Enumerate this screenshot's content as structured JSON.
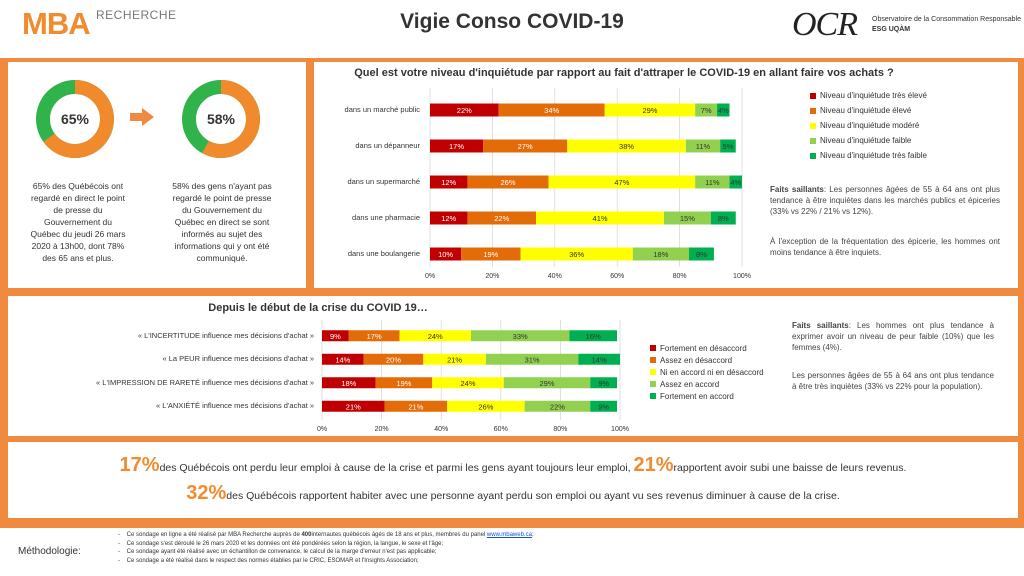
{
  "header": {
    "logo_mba": "MBA",
    "logo_mba_sub": "RECHERCHE",
    "title": "Vigie Conso COVID-19",
    "logo_ocr": "OCR",
    "ocr_sub1": "Observatoire de la Consommation Responsable",
    "ocr_sub2": "ESG UQÀM"
  },
  "donuts": [
    {
      "value": 65,
      "label": "65%",
      "caption": "65% des Québécois ont regardé en direct le point de presse du Gouvernement du Québec du jeudi 26 mars 2020 à 13h00, dont 78% des 65 ans et plus."
    },
    {
      "value": 58,
      "label": "58%",
      "caption": "58% des gens n'ayant pas regardé le point de presse du Gouvernement du Québec en direct se sont informés au sujet des informations qui y ont été communiqué."
    }
  ],
  "colors": {
    "orange": "#ef8a3e",
    "donut_green": "#2fb34a",
    "donut_orange": "#f08a2c"
  },
  "chart_data": [
    {
      "type": "bar",
      "orientation": "horizontal-stacked",
      "title": "Quel est votre niveau d'inquiétude par rapport au fait d'attraper le COVID-19 en allant faire vos achats ?",
      "categories": [
        "dans un marché public",
        "dans un dépanneur",
        "dans un supermarché",
        "dans une pharmacie",
        "dans une boulangerie"
      ],
      "series": [
        {
          "name": "Niveau d'inquiétude très élevé",
          "color": "#c00000",
          "values": [
            22,
            17,
            12,
            12,
            10
          ]
        },
        {
          "name": "Niveau d'inquiétude élevé",
          "color": "#e36c09",
          "values": [
            34,
            27,
            26,
            22,
            19
          ]
        },
        {
          "name": "Niveau d'inquiétude modéré",
          "color": "#ffff00",
          "values": [
            29,
            38,
            47,
            41,
            36
          ]
        },
        {
          "name": "Niveau d'inquiétude faible",
          "color": "#92d050",
          "values": [
            7,
            11,
            11,
            15,
            18
          ]
        },
        {
          "name": "Niveau d'inquiétude très faible",
          "color": "#00b050",
          "values": [
            4,
            5,
            4,
            8,
            8
          ]
        }
      ],
      "xlim": [
        0,
        100
      ],
      "xticks": [
        "0%",
        "20%",
        "40%",
        "60%",
        "80%",
        "100%"
      ],
      "legend": "right"
    },
    {
      "type": "bar",
      "orientation": "horizontal-stacked",
      "title": "Depuis le début de la crise du COVID 19…",
      "categories": [
        "« L'INCERTITUDE influence mes décisions d'achat »",
        "« La PEUR influence mes décisions d'achat »",
        "« L'IMPRESSION DE RARETÉ influence mes décisions d'achat »",
        "« L'ANXIÉTÉ influence mes décisions d'achat »"
      ],
      "series": [
        {
          "name": "Fortement en désaccord",
          "color": "#c00000",
          "values": [
            9,
            14,
            18,
            21
          ]
        },
        {
          "name": "Assez en désaccord",
          "color": "#e36c09",
          "values": [
            17,
            20,
            19,
            21
          ]
        },
        {
          "name": "Ni en accord ni en désaccord",
          "color": "#ffff00",
          "values": [
            24,
            21,
            24,
            26
          ]
        },
        {
          "name": "Assez en accord",
          "color": "#92d050",
          "values": [
            33,
            31,
            29,
            22
          ]
        },
        {
          "name": "Fortement en accord",
          "color": "#00b050",
          "values": [
            16,
            14,
            9,
            9
          ]
        }
      ],
      "xlim": [
        0,
        100
      ],
      "xticks": [
        "0%",
        "20%",
        "40%",
        "60%",
        "80%",
        "100%"
      ],
      "legend": "right"
    }
  ],
  "notes1": {
    "label": "Faits saillants",
    "text": ": Les personnes âgées de 55 à 64 ans ont plus tendance à être inquiètes dans les marchés publics et épiceries (33% vs 22% / 21% vs 12%).",
    "text2": "À l'exception de la fréquentation des épicerie, les hommes ont moins tendance à être inquiets."
  },
  "notes2": {
    "label": "Faits saillants",
    "text": ": Les hommes ont plus tendance à exprimer avoir un niveau de peur faible (10%) que les femmes (4%).",
    "text2": "Les personnes âgées de 55 à 64 ans ont plus tendance à être très inquiètes (33% vs 22% pour la population)."
  },
  "stats": {
    "n1": "17%",
    "t1": "des Québécois ont perdu leur emploi à cause de la crise et parmi les gens ayant toujours leur emploi,",
    "n2": "21%",
    "t2": "rapportent avoir subi une baisse de leurs revenus.",
    "n3": "32%",
    "t3": "des Québécois rapportent habiter avec une personne ayant perdu son emploi ou ayant vu ses revenus diminuer à cause de la crise."
  },
  "methodology": {
    "label": "Méthodologie:",
    "l1a": "Ce sondage en ligne a été réalisé par MBA Recherche auprès de",
    "l1n": "400",
    "l1b": "internautes québécois âgés de 18 ans et plus, membres du panel",
    "l1link": "www.mbaweb.ca",
    "l1c": ";",
    "l2": "Ce sondage s'est déroulé le 26 mars 2020 et les données ont été pondérées selon la région, la langue, le sexe et l'âge;",
    "l3": "Ce sondage ayant été réalisé avec un échantillon de convenance, le calcul de la marge d'erreur n'est pas applicable;",
    "l4": "Ce sondage a été réalisé dans le respect des normes établies par le CRIC, ESOMAR et l'Insights Association;"
  }
}
